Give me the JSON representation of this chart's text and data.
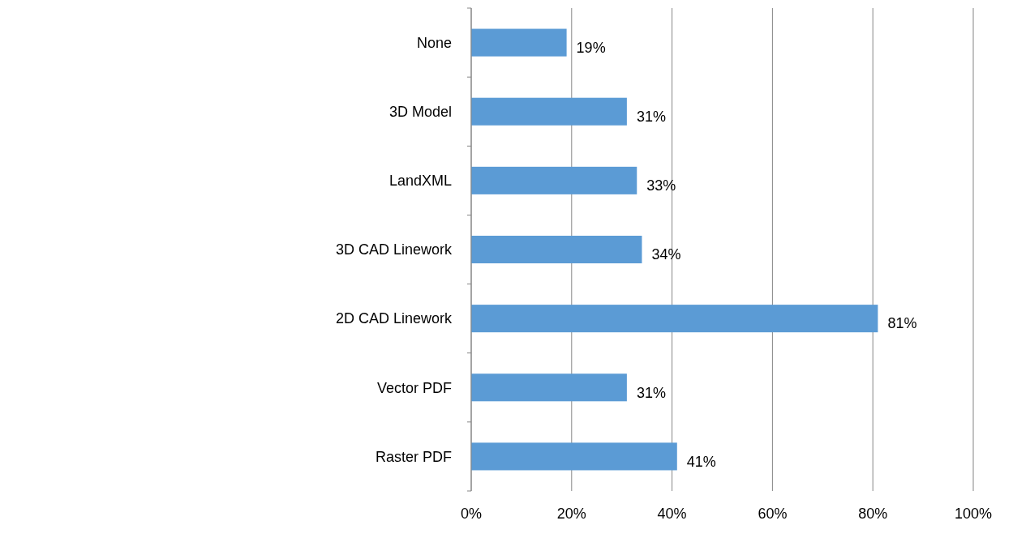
{
  "chart_data": {
    "type": "bar",
    "orientation": "horizontal",
    "categories": [
      "None",
      "3D Model",
      "LandXML",
      "3D CAD Linework",
      "2D CAD Linework",
      "Vector PDF",
      "Raster PDF"
    ],
    "values": [
      19,
      31,
      33,
      34,
      81,
      31,
      41
    ],
    "value_labels": [
      "19%",
      "31%",
      "33%",
      "34%",
      "81%",
      "31%",
      "41%"
    ],
    "color": "#5b9bd5",
    "xlim": [
      0,
      100
    ],
    "xticks": [
      {
        "value": 0,
        "label": "0%"
      },
      {
        "value": 20,
        "label": "20%"
      },
      {
        "value": 40,
        "label": "40%"
      },
      {
        "value": 60,
        "label": "60%"
      },
      {
        "value": 80,
        "label": "80%"
      },
      {
        "value": 100,
        "label": "100%"
      }
    ],
    "grid": "x"
  }
}
